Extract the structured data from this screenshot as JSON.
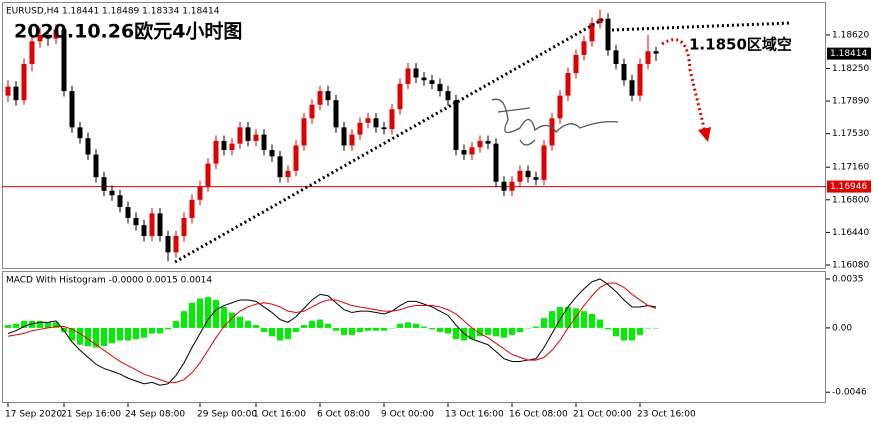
{
  "chart_data": [
    {
      "type": "candlestick",
      "symbol_header": "EURUSD,H4  1.18441 1.18489 1.18334 1.18414",
      "title": "2020.10.26欧元4小时图",
      "annotation": "1.1850区域空",
      "up_color": "#e00000",
      "down_color": "#000000",
      "ylim": [
        1.16047,
        1.18973
      ],
      "yticks": [
        {
          "value": 1.1862,
          "label": "1.18620"
        },
        {
          "value": 1.1825,
          "label": "1.18250"
        },
        {
          "value": 1.1789,
          "label": "1.17890"
        },
        {
          "value": 1.1753,
          "label": "1.17530"
        },
        {
          "value": 1.1716,
          "label": "1.17160"
        },
        {
          "value": 1.168,
          "label": "1.16800"
        },
        {
          "value": 1.1644,
          "label": "1.16440"
        },
        {
          "value": 1.1608,
          "label": "1.16080"
        }
      ],
      "hline": 1.16946,
      "hline_color": "#e00000",
      "xticks": [
        {
          "value": 0,
          "label": "17 Sep 2020"
        },
        {
          "value": 7,
          "label": "21 Sep 16:00"
        },
        {
          "value": 15,
          "label": "24 Sep 08:00"
        },
        {
          "value": 24,
          "label": "29 Sep 00:00"
        },
        {
          "value": 31,
          "label": "1 Oct 16:00"
        },
        {
          "value": 39,
          "label": "6 Oct 08:00"
        },
        {
          "value": 47,
          "label": "9 Oct 00:00"
        },
        {
          "value": 55,
          "label": "13 Oct 16:00"
        },
        {
          "value": 63,
          "label": "16 Oct 08:00"
        },
        {
          "value": 71,
          "label": "21 Oct 00:00"
        },
        {
          "value": 79,
          "label": "23 Oct 16:00"
        }
      ],
      "ohlc": [
        [
          1.1795,
          1.1812,
          1.1788,
          1.1805
        ],
        [
          1.1805,
          1.1811,
          1.1784,
          1.179
        ],
        [
          1.179,
          1.1836,
          1.1785,
          1.183
        ],
        [
          1.183,
          1.1862,
          1.1822,
          1.1855
        ],
        [
          1.1855,
          1.187,
          1.1848,
          1.1862
        ],
        [
          1.1862,
          1.1868,
          1.185,
          1.1858
        ],
        [
          1.1858,
          1.1874,
          1.1852,
          1.1868
        ],
        [
          1.1868,
          1.1872,
          1.1794,
          1.18
        ],
        [
          1.18,
          1.1806,
          1.1754,
          1.176
        ],
        [
          1.176,
          1.1766,
          1.1742,
          1.1748
        ],
        [
          1.1748,
          1.1754,
          1.1724,
          1.173
        ],
        [
          1.173,
          1.1736,
          1.1699,
          1.1705
        ],
        [
          1.1705,
          1.1711,
          1.1684,
          1.169
        ],
        [
          1.169,
          1.1696,
          1.1679,
          1.1685
        ],
        [
          1.1685,
          1.1691,
          1.1666,
          1.1672
        ],
        [
          1.1672,
          1.1678,
          1.1654,
          1.166
        ],
        [
          1.166,
          1.1666,
          1.1646,
          1.1652
        ],
        [
          1.1652,
          1.1658,
          1.1634,
          1.164
        ],
        [
          1.164,
          1.1671,
          1.1634,
          1.1665
        ],
        [
          1.1665,
          1.1671,
          1.1634,
          1.164
        ],
        [
          1.164,
          1.1646,
          1.1612,
          1.1622
        ],
        [
          1.1622,
          1.1646,
          1.1616,
          1.164
        ],
        [
          1.164,
          1.1666,
          1.1634,
          1.166
        ],
        [
          1.166,
          1.1686,
          1.1654,
          1.168
        ],
        [
          1.168,
          1.1701,
          1.1674,
          1.1695
        ],
        [
          1.1695,
          1.1726,
          1.1689,
          1.172
        ],
        [
          1.172,
          1.1751,
          1.1714,
          1.1745
        ],
        [
          1.1745,
          1.1751,
          1.1729,
          1.1735
        ],
        [
          1.1735,
          1.1748,
          1.1729,
          1.1742
        ],
        [
          1.1742,
          1.1766,
          1.1736,
          1.176
        ],
        [
          1.176,
          1.1766,
          1.1739,
          1.1745
        ],
        [
          1.1745,
          1.1758,
          1.1739,
          1.1752
        ],
        [
          1.1752,
          1.1758,
          1.1729,
          1.1735
        ],
        [
          1.1735,
          1.1741,
          1.1722,
          1.1728
        ],
        [
          1.1728,
          1.1734,
          1.1699,
          1.1705
        ],
        [
          1.1705,
          1.1718,
          1.1699,
          1.1712
        ],
        [
          1.1712,
          1.1746,
          1.1706,
          1.174
        ],
        [
          1.174,
          1.1776,
          1.1734,
          1.177
        ],
        [
          1.177,
          1.1791,
          1.1764,
          1.1785
        ],
        [
          1.1785,
          1.1806,
          1.1779,
          1.18
        ],
        [
          1.18,
          1.1806,
          1.1784,
          1.179
        ],
        [
          1.179,
          1.1796,
          1.1754,
          1.176
        ],
        [
          1.176,
          1.1766,
          1.1734,
          1.174
        ],
        [
          1.174,
          1.1758,
          1.1734,
          1.1752
        ],
        [
          1.1752,
          1.1771,
          1.1746,
          1.1765
        ],
        [
          1.1765,
          1.1776,
          1.1759,
          1.177
        ],
        [
          1.177,
          1.1776,
          1.1754,
          1.176
        ],
        [
          1.176,
          1.1766,
          1.1752,
          1.1758
        ],
        [
          1.1758,
          1.1786,
          1.1752,
          1.178
        ],
        [
          1.178,
          1.1814,
          1.1774,
          1.1808
        ],
        [
          1.1808,
          1.1831,
          1.1802,
          1.1825
        ],
        [
          1.1825,
          1.1831,
          1.1809,
          1.1815
        ],
        [
          1.1815,
          1.1821,
          1.1806,
          1.1812
        ],
        [
          1.1812,
          1.1818,
          1.1802,
          1.1808
        ],
        [
          1.1808,
          1.1814,
          1.1794,
          1.18
        ],
        [
          1.18,
          1.1806,
          1.1784,
          1.179
        ],
        [
          1.179,
          1.1796,
          1.1729,
          1.1735
        ],
        [
          1.1735,
          1.1741,
          1.1724,
          1.173
        ],
        [
          1.173,
          1.1744,
          1.1724,
          1.1738
        ],
        [
          1.1738,
          1.1751,
          1.1732,
          1.1745
        ],
        [
          1.1745,
          1.1751,
          1.1736,
          1.1742
        ],
        [
          1.1742,
          1.1748,
          1.1694,
          1.17
        ],
        [
          1.17,
          1.1706,
          1.1684,
          1.169
        ],
        [
          1.169,
          1.1706,
          1.1684,
          1.17
        ],
        [
          1.17,
          1.1718,
          1.1694,
          1.1712
        ],
        [
          1.1712,
          1.1718,
          1.1699,
          1.1705
        ],
        [
          1.1705,
          1.1711,
          1.1696,
          1.1702
        ],
        [
          1.1702,
          1.1746,
          1.1696,
          1.174
        ],
        [
          1.174,
          1.1776,
          1.1734,
          1.177
        ],
        [
          1.177,
          1.1801,
          1.1764,
          1.1795
        ],
        [
          1.1795,
          1.1826,
          1.1789,
          1.182
        ],
        [
          1.182,
          1.1846,
          1.1814,
          1.184
        ],
        [
          1.184,
          1.1861,
          1.1834,
          1.1855
        ],
        [
          1.1855,
          1.1881,
          1.1849,
          1.1875
        ],
        [
          1.1875,
          1.189,
          1.1869,
          1.188
        ],
        [
          1.188,
          1.1886,
          1.1839,
          1.1845
        ],
        [
          1.1845,
          1.1851,
          1.1824,
          1.183
        ],
        [
          1.183,
          1.1836,
          1.1806,
          1.1812
        ],
        [
          1.1812,
          1.1818,
          1.1789,
          1.1795
        ],
        [
          1.1795,
          1.1836,
          1.1789,
          1.183
        ],
        [
          1.183,
          1.1862,
          1.1824,
          1.1844
        ],
        [
          1.18441,
          1.18489,
          1.18334,
          1.18414
        ]
      ]
    },
    {
      "type": "macd",
      "title": "MACD With Histogram -0.0000 0.0015 0.0014",
      "ylim": [
        -0.0053,
        0.004
      ],
      "yticks": [
        {
          "value": 0.0035,
          "label": "0.0035"
        },
        {
          "value": 0,
          "label": "0.00"
        },
        {
          "value": -0.0046,
          "label": "-0.0046"
        }
      ],
      "histogram_color": "#00ee00",
      "histogram": [
        0.0002,
        0.0003,
        0.0005,
        0.0005,
        0.0005,
        0.0004,
        0.0004,
        -0.0003,
        -0.0009,
        -0.0012,
        -0.0013,
        -0.0014,
        -0.0013,
        -0.0011,
        -0.0009,
        -0.0009,
        -0.0008,
        -0.0007,
        -0.0004,
        -0.0004,
        -0.0001,
        0.0005,
        0.0012,
        0.0018,
        0.0021,
        0.0022,
        0.002,
        0.0015,
        0.0011,
        0.0008,
        0.0005,
        0.0002,
        -0.0003,
        -0.0006,
        -0.0009,
        -0.0008,
        -0.0003,
        0.0002,
        0.0005,
        0.0006,
        0.0003,
        -0.0002,
        -0.0005,
        -0.0005,
        -0.0003,
        -0.0002,
        -0.0002,
        -0.0002,
        0.0,
        0.0003,
        0.0004,
        0.0003,
        0.0001,
        -0.0001,
        -0.0003,
        -0.0004,
        -0.0008,
        -0.0009,
        -0.0008,
        -0.0006,
        -0.0005,
        -0.0006,
        -0.0007,
        -0.0005,
        -0.0003,
        0.0,
        0.0001,
        0.0007,
        0.0012,
        0.0015,
        0.0015,
        0.0014,
        0.0012,
        0.001,
        0.0006,
        -0.0001,
        -0.0006,
        -0.0009,
        -0.0009,
        -0.0005,
        0.0,
        0.0
      ],
      "series": [
        {
          "color": "#000000",
          "values": [
            -0.0004,
            -0.0002,
            0.0001,
            0.0003,
            0.0004,
            0.0004,
            0.0005,
            -0.0002,
            -0.001,
            -0.0016,
            -0.0021,
            -0.0026,
            -0.0029,
            -0.0031,
            -0.0033,
            -0.0036,
            -0.0038,
            -0.004,
            -0.0039,
            -0.0041,
            -0.004,
            -0.0034,
            -0.0025,
            -0.0014,
            -0.0004,
            0.0006,
            0.0013,
            0.0016,
            0.0018,
            0.002,
            0.002,
            0.0019,
            0.0015,
            0.0011,
            0.0006,
            0.0004,
            0.0008,
            0.0014,
            0.002,
            0.0024,
            0.0023,
            0.0018,
            0.0013,
            0.0011,
            0.0012,
            0.0012,
            0.0011,
            0.001,
            0.0012,
            0.0016,
            0.0019,
            0.0019,
            0.0017,
            0.0015,
            0.0012,
            0.0009,
            0.0002,
            -0.0004,
            -0.0008,
            -0.001,
            -0.0012,
            -0.0017,
            -0.0022,
            -0.0024,
            -0.0024,
            -0.0023,
            -0.0022,
            -0.0014,
            -0.0004,
            0.0006,
            0.0015,
            0.0022,
            0.0028,
            0.0033,
            0.0035,
            0.0031,
            0.0026,
            0.002,
            0.0015,
            0.0015,
            0.0016,
            0.0015
          ]
        },
        {
          "color": "#e00000",
          "values": [
            -0.0006,
            -0.0005,
            -0.0004,
            -0.0002,
            -0.0001,
            0.0,
            0.0001,
            0.0001,
            -0.0001,
            -0.0004,
            -0.0008,
            -0.0012,
            -0.0016,
            -0.002,
            -0.0024,
            -0.0027,
            -0.003,
            -0.0033,
            -0.0035,
            -0.0037,
            -0.0039,
            -0.0039,
            -0.0037,
            -0.0032,
            -0.0025,
            -0.0016,
            -0.0007,
            0.0001,
            0.0007,
            0.0012,
            0.0015,
            0.0017,
            0.0018,
            0.0017,
            0.0015,
            0.0012,
            0.0011,
            0.0012,
            0.0015,
            0.0018,
            0.002,
            0.002,
            0.0018,
            0.0016,
            0.0015,
            0.0014,
            0.0013,
            0.0012,
            0.0012,
            0.0013,
            0.0015,
            0.0016,
            0.0016,
            0.0016,
            0.0015,
            0.0013,
            0.001,
            0.0005,
            0.0,
            -0.0004,
            -0.0007,
            -0.0011,
            -0.0015,
            -0.0019,
            -0.0021,
            -0.0023,
            -0.0023,
            -0.0021,
            -0.0016,
            -0.0009,
            0.0,
            0.0008,
            0.0016,
            0.0023,
            0.0029,
            0.0032,
            0.0032,
            0.0029,
            0.0024,
            0.002,
            0.0016,
            0.0014
          ]
        }
      ]
    }
  ]
}
